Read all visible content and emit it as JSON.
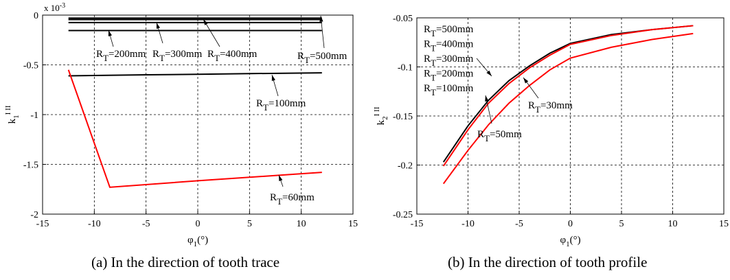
{
  "chart_data": [
    {
      "type": "line",
      "panel": "a",
      "caption": "(a) In the direction of tooth trace",
      "xlabel": "φ1(°)",
      "ylabel": "k1 I II",
      "ylabel_main": "k",
      "ylabel_sub": "1",
      "ylabel_sup": "I II",
      "xlabel_main": "φ",
      "xlabel_sub": "1",
      "xlabel_unit": "(°)",
      "y_multiplier": "x 10",
      "y_multiplier_exp": "-3",
      "xlim": [
        -15,
        15
      ],
      "ylim": [
        -2,
        0
      ],
      "xticks": [
        -15,
        -10,
        -5,
        0,
        5,
        10,
        15
      ],
      "yticks": [
        0,
        -0.5,
        -1,
        -1.5,
        -2
      ],
      "ytick_labels": [
        "0",
        "-0.5",
        "-1",
        "-1.5",
        "-2"
      ],
      "grid": true,
      "series": [
        {
          "name": "RT=500mm",
          "color": "#000000",
          "x": [
            -12.5,
            12
          ],
          "y": [
            -0.03,
            -0.03
          ]
        },
        {
          "name": "RT=400mm",
          "color": "#000000",
          "x": [
            -12.5,
            12
          ],
          "y": [
            -0.045,
            -0.045
          ]
        },
        {
          "name": "RT=300mm",
          "color": "#000000",
          "x": [
            -12.5,
            12
          ],
          "y": [
            -0.075,
            -0.075
          ]
        },
        {
          "name": "RT=200mm",
          "color": "#000000",
          "x": [
            -12.5,
            12
          ],
          "y": [
            -0.155,
            -0.155
          ]
        },
        {
          "name": "RT=100mm",
          "color": "#000000",
          "x": [
            -12.5,
            -5,
            0,
            5,
            12
          ],
          "y": [
            -0.61,
            -0.6,
            -0.595,
            -0.588,
            -0.58
          ]
        },
        {
          "name": "RT=60mm",
          "color": "#ff0000",
          "x": [
            -12.5,
            -8.5,
            0,
            12
          ],
          "y": [
            -0.55,
            -1.73,
            -1.665,
            -1.58
          ]
        }
      ],
      "annotations": [
        {
          "text": "=200mm",
          "sub": "T"
        },
        {
          "text": "=300mm",
          "sub": "T"
        },
        {
          "text": "=400mm",
          "sub": "T"
        },
        {
          "text": "=500mm",
          "sub": "T"
        },
        {
          "text": "=100mm",
          "sub": "T"
        },
        {
          "text": "=60mm",
          "sub": "T"
        }
      ]
    },
    {
      "type": "line",
      "panel": "b",
      "caption": "(b) In the direction of tooth profile",
      "xlabel": "φ1(°)",
      "ylabel": "k2 I II",
      "ylabel_main": "k",
      "ylabel_sub": "2",
      "ylabel_sup": "I II",
      "xlabel_main": "φ",
      "xlabel_sub": "1",
      "xlabel_unit": "(°)",
      "xlim": [
        -15,
        15
      ],
      "ylim": [
        -0.25,
        -0.05
      ],
      "xticks": [
        -15,
        -10,
        -5,
        0,
        5,
        10,
        15
      ],
      "yticks": [
        -0.05,
        -0.1,
        -0.15,
        -0.2,
        -0.25
      ],
      "ytick_labels": [
        "-0.05",
        "-0.1",
        "-0.15",
        "-0.2",
        "-0.25"
      ],
      "grid": true,
      "series": [
        {
          "name": "RT=100-500mm",
          "color": "#000000",
          "x": [
            -12.4,
            -10,
            -8,
            -6,
            -4,
            -2,
            0,
            4,
            8,
            12
          ],
          "y": [
            -0.197,
            -0.16,
            -0.134,
            -0.114,
            -0.099,
            -0.086,
            -0.076,
            -0.067,
            -0.062,
            -0.058
          ]
        },
        {
          "name": "RT=50mm",
          "color": "#ff0000",
          "x": [
            -12.4,
            -10,
            -8,
            -6,
            -4,
            -2,
            0,
            4,
            8,
            12
          ],
          "y": [
            -0.201,
            -0.164,
            -0.137,
            -0.117,
            -0.101,
            -0.088,
            -0.077,
            -0.068,
            -0.062,
            -0.058
          ]
        },
        {
          "name": "RT=30mm",
          "color": "#ff0000",
          "x": [
            -12.4,
            -10,
            -8,
            -6,
            -4,
            -2,
            0,
            4,
            8,
            12
          ],
          "y": [
            -0.219,
            -0.185,
            -0.159,
            -0.137,
            -0.119,
            -0.103,
            -0.091,
            -0.08,
            -0.072,
            -0.066
          ]
        }
      ],
      "annotations": [
        {
          "text": "=500mm",
          "sub": "T"
        },
        {
          "text": "=400mm",
          "sub": "T"
        },
        {
          "text": "=300mm",
          "sub": "T"
        },
        {
          "text": "=200mm",
          "sub": "T"
        },
        {
          "text": "=100mm",
          "sub": "T"
        },
        {
          "text": "=50mm",
          "sub": "T"
        },
        {
          "text": "=30mm",
          "sub": "T"
        }
      ]
    }
  ]
}
